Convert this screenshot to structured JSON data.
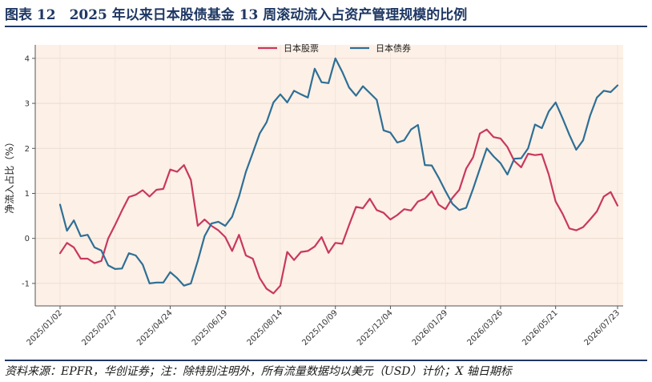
{
  "figure": {
    "title": "图表 12　2025 年以来日本股债基金 13 周滚动流入占资产管理规模的比例",
    "source": "资料来源：EPFR，华创证券；注：除特别注明外，所有流量数据均以美元（USD）计价；X 轴日期标"
  },
  "chart_data": {
    "type": "line",
    "ylabel": "净流入占比（%）",
    "ylim": [
      -1.5,
      4.3
    ],
    "yticks": [
      -1,
      0,
      1,
      2,
      3,
      4
    ],
    "xlim": [
      0,
      81
    ],
    "xticks": [
      {
        "label": "2025/01/02",
        "x": 0
      },
      {
        "label": "2025/02/27",
        "x": 8
      },
      {
        "label": "2025/04/24",
        "x": 16
      },
      {
        "label": "2025/06/19",
        "x": 24
      },
      {
        "label": "2025/08/14",
        "x": 32
      },
      {
        "label": "2025/10/09",
        "x": 40
      },
      {
        "label": "2025/12/04",
        "x": 48
      },
      {
        "label": "2026/01/29",
        "x": 56
      },
      {
        "label": "2026/03/26",
        "x": 64
      },
      {
        "label": "2026/05/21",
        "x": 72
      },
      {
        "label": "2026/07/23",
        "x": 81
      }
    ],
    "grid": true,
    "legend_position": "top-center",
    "series": [
      {
        "name": "日本股票",
        "color": "#c8385f",
        "values": [
          -0.33,
          -0.1,
          -0.2,
          -0.45,
          -0.45,
          -0.55,
          -0.5,
          0.0,
          0.3,
          0.62,
          0.92,
          0.97,
          1.07,
          0.93,
          1.08,
          1.1,
          1.53,
          1.48,
          1.63,
          1.3,
          0.28,
          0.42,
          0.28,
          0.18,
          0.03,
          -0.28,
          0.08,
          -0.38,
          -0.45,
          -0.88,
          -1.12,
          -1.22,
          -1.05,
          -0.3,
          -0.48,
          -0.3,
          -0.28,
          -0.18,
          0.03,
          -0.32,
          -0.1,
          -0.12,
          0.3,
          0.7,
          0.67,
          0.88,
          0.63,
          0.57,
          0.42,
          0.52,
          0.65,
          0.62,
          0.82,
          0.88,
          1.05,
          0.75,
          0.65,
          0.9,
          1.08,
          1.55,
          1.8,
          2.33,
          2.42,
          2.25,
          2.22,
          2.03,
          1.72,
          1.58,
          1.88,
          1.85,
          1.87,
          1.42,
          0.82,
          0.55,
          0.22,
          0.18,
          0.25,
          0.42,
          0.6,
          0.93,
          1.03,
          0.73
        ]
      },
      {
        "name": "日本债券",
        "color": "#2e6f96",
        "values": [
          0.75,
          0.17,
          0.4,
          0.05,
          0.08,
          -0.2,
          -0.27,
          -0.6,
          -0.68,
          -0.67,
          -0.33,
          -0.38,
          -0.58,
          -1.0,
          -0.98,
          -0.98,
          -0.75,
          -0.88,
          -1.05,
          -1.0,
          -0.5,
          0.05,
          0.33,
          0.37,
          0.28,
          0.48,
          0.93,
          1.48,
          1.9,
          2.33,
          2.58,
          3.02,
          3.2,
          3.02,
          3.28,
          3.2,
          3.13,
          3.77,
          3.47,
          3.45,
          4.0,
          3.7,
          3.35,
          3.17,
          3.38,
          3.23,
          3.08,
          2.4,
          2.35,
          2.13,
          2.18,
          2.42,
          2.52,
          1.63,
          1.62,
          1.35,
          1.05,
          0.77,
          0.63,
          0.68,
          1.1,
          1.55,
          2.0,
          1.82,
          1.67,
          1.42,
          1.77,
          1.78,
          2.0,
          2.53,
          2.45,
          2.82,
          3.02,
          2.67,
          2.3,
          1.97,
          2.18,
          2.72,
          3.13,
          3.28,
          3.25,
          3.4
        ]
      }
    ]
  }
}
